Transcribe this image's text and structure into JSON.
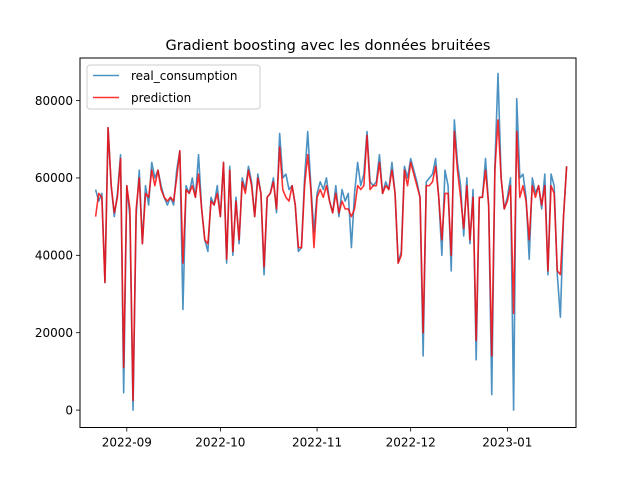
{
  "chart_data": {
    "type": "line",
    "title": "Gradient boosting avec les données bruitées",
    "xlabel": "",
    "ylabel": "",
    "x_start": "2022-08-22",
    "x_end": "2023-01-18",
    "xlim": [
      "2022-08-17",
      "2023-01-23"
    ],
    "ylim": [
      -4500,
      91000
    ],
    "grid": false,
    "legend_position": "upper left",
    "x_ticks": [
      {
        "date": "2022-09-01",
        "label": "2022-09"
      },
      {
        "date": "2022-10-01",
        "label": "2022-10"
      },
      {
        "date": "2022-11-01",
        "label": "2022-11"
      },
      {
        "date": "2022-12-01",
        "label": "2022-12"
      },
      {
        "date": "2023-01-01",
        "label": "2023-01"
      }
    ],
    "y_ticks": [
      {
        "value": 0,
        "label": "0"
      },
      {
        "value": 20000,
        "label": "20000"
      },
      {
        "value": 40000,
        "label": "40000"
      },
      {
        "value": 60000,
        "label": "60000"
      },
      {
        "value": 80000,
        "label": "80000"
      }
    ],
    "series": [
      {
        "name": "real_consumption",
        "color": "#1f77b4",
        "values": [
          57000,
          54000,
          56000,
          33000,
          73000,
          58000,
          50000,
          56000,
          66000,
          4500,
          58000,
          50000,
          0,
          50000,
          62000,
          43000,
          58000,
          53000,
          64000,
          60000,
          62000,
          58000,
          55000,
          53000,
          55000,
          53000,
          62000,
          67000,
          26000,
          58000,
          56000,
          60000,
          55000,
          66000,
          52000,
          44000,
          41000,
          55000,
          53000,
          58000,
          50000,
          64000,
          38000,
          63000,
          40000,
          55000,
          43000,
          60000,
          57000,
          63000,
          59000,
          50000,
          61000,
          56000,
          35000,
          55000,
          56000,
          60000,
          51000,
          71500,
          60000,
          61000,
          57000,
          58000,
          53000,
          41000,
          42000,
          60000,
          72000,
          58000,
          46000,
          56000,
          59000,
          57000,
          60000,
          54000,
          51000,
          58000,
          50000,
          57000,
          54000,
          56000,
          42000,
          56000,
          64000,
          58000,
          61000,
          72000,
          59000,
          58000,
          59000,
          66000,
          56000,
          59000,
          57000,
          64000,
          56000,
          38000,
          41000,
          63000,
          60000,
          65000,
          62000,
          59000,
          55000,
          14000,
          59000,
          60000,
          61000,
          65000,
          55000,
          40000,
          62000,
          58000,
          36000,
          75000,
          64000,
          58000,
          45000,
          60000,
          43000,
          57000,
          13000,
          55000,
          55000,
          65000,
          53000,
          4000,
          63000,
          87000,
          60000,
          52000,
          55000,
          60000,
          0,
          80500,
          60000,
          61000,
          55000,
          39000,
          60000,
          56000,
          58000,
          52000,
          61000,
          35000,
          61000,
          58000,
          35000,
          24000,
          50000,
          63000
        ],
        "opacity": 0.8
      },
      {
        "name": "prediction",
        "color": "#ff0000",
        "values": [
          50000,
          56000,
          55000,
          33000,
          73000,
          58000,
          51000,
          55000,
          65000,
          11000,
          58000,
          52000,
          2500,
          52000,
          60000,
          43000,
          56000,
          55000,
          62000,
          58000,
          62000,
          57000,
          55000,
          54000,
          55000,
          54000,
          60000,
          67000,
          38000,
          57000,
          56000,
          58000,
          55000,
          61000,
          52000,
          44000,
          43000,
          54000,
          53000,
          56000,
          50000,
          64000,
          39000,
          62000,
          41000,
          54000,
          44000,
          59000,
          56000,
          62000,
          58000,
          50000,
          60000,
          56000,
          37000,
          55000,
          56000,
          59000,
          52000,
          68000,
          57000,
          55000,
          54000,
          58000,
          53000,
          42000,
          42000,
          58000,
          66000,
          57000,
          42000,
          55000,
          57000,
          55000,
          58000,
          54000,
          51000,
          56000,
          51000,
          54000,
          52000,
          52000,
          50000,
          52000,
          58000,
          57000,
          58000,
          71000,
          57000,
          58000,
          58000,
          64000,
          56000,
          58000,
          57000,
          62000,
          56000,
          38000,
          40000,
          62000,
          58000,
          64000,
          61000,
          58000,
          55000,
          20000,
          58000,
          58000,
          59000,
          63000,
          55000,
          44000,
          56000,
          56000,
          40000,
          72000,
          62000,
          55000,
          47000,
          58000,
          44000,
          55000,
          18000,
          55000,
          55000,
          62000,
          53000,
          14000,
          62000,
          75000,
          60000,
          52000,
          54000,
          58000,
          25000,
          72000,
          55000,
          58000,
          54000,
          44000,
          58000,
          55000,
          58000,
          53000,
          58000,
          36000,
          58000,
          56000,
          36000,
          35000,
          50000,
          63000
        ],
        "opacity": 0.8
      }
    ]
  }
}
